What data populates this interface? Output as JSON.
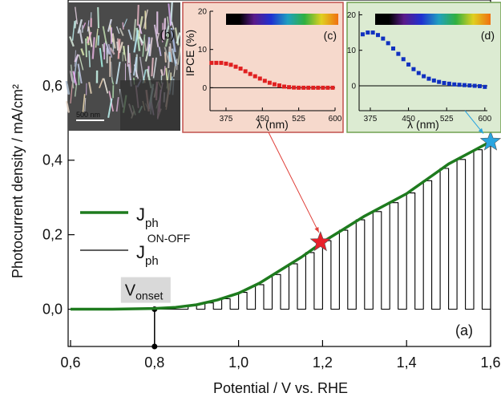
{
  "chart_data": [
    {
      "type": "line",
      "x_label": "Potential / V vs. RHE",
      "y_label": "Photocurrent density / mA/cm²",
      "panel_label": "(a)",
      "xlim": [
        0.6,
        1.6
      ],
      "xticks": [
        {
          "value": 0.6,
          "label": "0,6"
        },
        {
          "value": 0.8,
          "label": "0,8"
        },
        {
          "value": 1.0,
          "label": "1,0"
        },
        {
          "value": 1.2,
          "label": "1,2"
        },
        {
          "value": 1.4,
          "label": "1,4"
        },
        {
          "value": 1.6,
          "label": "1,6"
        }
      ],
      "ylim": [
        -0.1,
        0.83
      ],
      "yticks": [
        {
          "value": 0,
          "label": "0,0"
        },
        {
          "value": 0.2,
          "label": "0,2"
        },
        {
          "value": 0.4,
          "label": "0,4"
        },
        {
          "value": 0.6,
          "label": "0,6"
        }
      ],
      "series": [
        {
          "name": "J",
          "name_sub": "ph",
          "color": "#1e7b1e",
          "x": [
            0.6,
            0.7,
            0.8,
            0.85,
            0.9,
            0.95,
            1.0,
            1.05,
            1.1,
            1.15,
            1.2,
            1.25,
            1.3,
            1.35,
            1.4,
            1.45,
            1.5,
            1.55,
            1.6
          ],
          "values": [
            0,
            0,
            0.002,
            0.005,
            0.012,
            0.025,
            0.043,
            0.07,
            0.105,
            0.14,
            0.18,
            0.215,
            0.25,
            0.28,
            0.31,
            0.35,
            0.39,
            0.42,
            0.45
          ]
        },
        {
          "name": "J",
          "name_sub": "ph",
          "name_sup": "ON-OFF",
          "color": "#000000",
          "x": [
            0.6,
            0.88,
            0.88,
            0.9,
            0.9,
            0.92,
            0.92,
            0.94,
            0.94,
            0.96,
            0.96,
            0.98,
            0.98,
            1.0,
            1.0,
            1.02,
            1.02,
            1.04,
            1.04,
            1.06,
            1.06,
            1.08,
            1.08,
            1.1,
            1.1,
            1.12,
            1.12,
            1.14,
            1.14,
            1.16,
            1.16,
            1.18,
            1.18,
            1.2,
            1.2,
            1.22,
            1.22,
            1.24,
            1.24,
            1.26,
            1.26,
            1.28,
            1.28,
            1.3,
            1.3,
            1.32,
            1.32,
            1.34,
            1.34,
            1.36,
            1.36,
            1.38,
            1.38,
            1.4,
            1.4,
            1.42,
            1.42,
            1.44,
            1.44,
            1.46,
            1.46,
            1.48,
            1.48,
            1.5,
            1.5,
            1.52,
            1.52,
            1.54,
            1.54,
            1.56,
            1.56,
            1.58,
            1.58,
            1.6
          ],
          "values": [
            0,
            0,
            0.01,
            0.01,
            0,
            0,
            0.017,
            0.017,
            0,
            0,
            0.028,
            0.028,
            0,
            0,
            0.045,
            0.045,
            0,
            0,
            0.066,
            0.066,
            0,
            0,
            0.093,
            0.093,
            0,
            0,
            0.122,
            0.122,
            0,
            0,
            0.152,
            0.152,
            0,
            0,
            0.184,
            0.184,
            0,
            0,
            0.212,
            0.212,
            0,
            0,
            0.24,
            0.24,
            0,
            0,
            0.262,
            0.262,
            0,
            0,
            0.286,
            0.286,
            0,
            0,
            0.312,
            0.312,
            0,
            0,
            0.345,
            0.345,
            0,
            0,
            0.378,
            0.378,
            0,
            0,
            0.402,
            0.402,
            0,
            0,
            0.428,
            0.428,
            0,
            0
          ]
        }
      ],
      "onset": {
        "label": "V",
        "label_sub": "onset",
        "x": 0.8
      },
      "markers": [
        {
          "x": 1.195,
          "y": 0.18,
          "color": "#e8202a"
        },
        {
          "x": 1.6,
          "y": 0.45,
          "color": "#2aa5e0"
        }
      ]
    },
    {
      "type": "scatter",
      "panel_label": "(c)",
      "y_label": "IPCE (%)",
      "x_label": "λ (nm)",
      "background": "#f6d9cc",
      "border": "#c0504d",
      "color": "#e02020",
      "xlim": [
        342,
        600
      ],
      "xticks": [
        375,
        450,
        525,
        600
      ],
      "ylim": [
        -6,
        20
      ],
      "yticks": [
        0,
        10,
        20
      ],
      "x": [
        345,
        355,
        365,
        375,
        385,
        395,
        405,
        415,
        425,
        435,
        445,
        455,
        465,
        475,
        485,
        495,
        505,
        515,
        525,
        535,
        545,
        555,
        565,
        575,
        585,
        595
      ],
      "values": [
        6.5,
        6.5,
        6.5,
        6.3,
        6,
        5.5,
        5,
        4.3,
        3.6,
        3,
        2.4,
        1.8,
        1.3,
        0.9,
        0.6,
        0.3,
        0.15,
        0.05,
        0,
        0,
        0,
        0,
        0,
        0,
        0,
        0
      ]
    },
    {
      "type": "scatter",
      "panel_label": "(d)",
      "x_label": "λ (nm)",
      "background": "#dcebd2",
      "border": "#70a050",
      "color": "#1030c0",
      "xlim": [
        353,
        605
      ],
      "xticks": [
        375,
        450,
        525,
        600
      ],
      "ylim": [
        -7,
        21
      ],
      "yticks": [
        0,
        10,
        20
      ],
      "x": [
        360,
        370,
        380,
        390,
        400,
        410,
        420,
        430,
        440,
        450,
        460,
        470,
        480,
        490,
        500,
        510,
        520,
        530,
        540,
        550,
        560,
        570,
        580,
        590,
        600
      ],
      "values": [
        14.5,
        15,
        15,
        14.3,
        13.3,
        12,
        10.5,
        9,
        7.5,
        6,
        4.7,
        3.6,
        2.7,
        2,
        1.5,
        1.1,
        0.8,
        0.6,
        0.4,
        0.3,
        0.2,
        0.1,
        0,
        -0.1,
        -0.3
      ]
    }
  ],
  "sem_inset": {
    "label": "(b)",
    "scale_bar": "500 nm"
  }
}
